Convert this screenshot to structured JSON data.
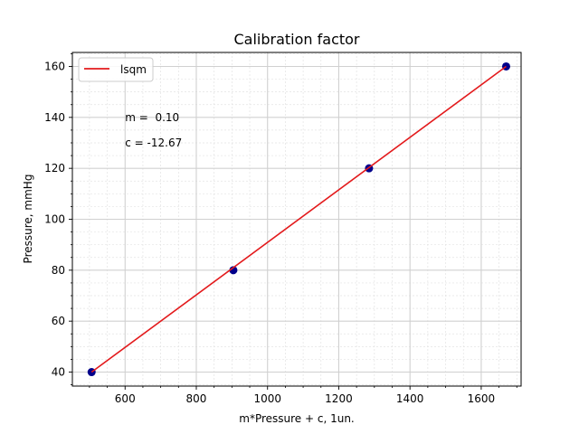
{
  "chart_data": {
    "type": "scatter",
    "title": "Calibration factor",
    "xlabel": "m*Pressure + c, 1un.",
    "ylabel": "Pressure, mmHg",
    "xlim": [
      452,
      1712
    ],
    "ylim": [
      34.5,
      165.5
    ],
    "x_ticks": [
      600,
      800,
      1000,
      1200,
      1400,
      1600
    ],
    "y_ticks": [
      40,
      60,
      80,
      100,
      120,
      140,
      160
    ],
    "grid": true,
    "minor_grid": true,
    "legend": {
      "position": "top-left",
      "entries": [
        "lsqm"
      ]
    },
    "series": [
      {
        "type": "scatter",
        "color": "#00008b",
        "x": [
          506,
          904,
          1285,
          1670
        ],
        "y": [
          40,
          80,
          120,
          160
        ]
      },
      {
        "type": "line",
        "name": "lsqm",
        "color": "#e31a1c",
        "x": [
          506,
          1670
        ],
        "y": [
          40,
          160
        ]
      }
    ],
    "annotations": [
      {
        "text": "m =  0.10",
        "x": 600,
        "y": 140
      },
      {
        "text": "c = -12.67",
        "x": 600,
        "y": 130
      }
    ]
  }
}
